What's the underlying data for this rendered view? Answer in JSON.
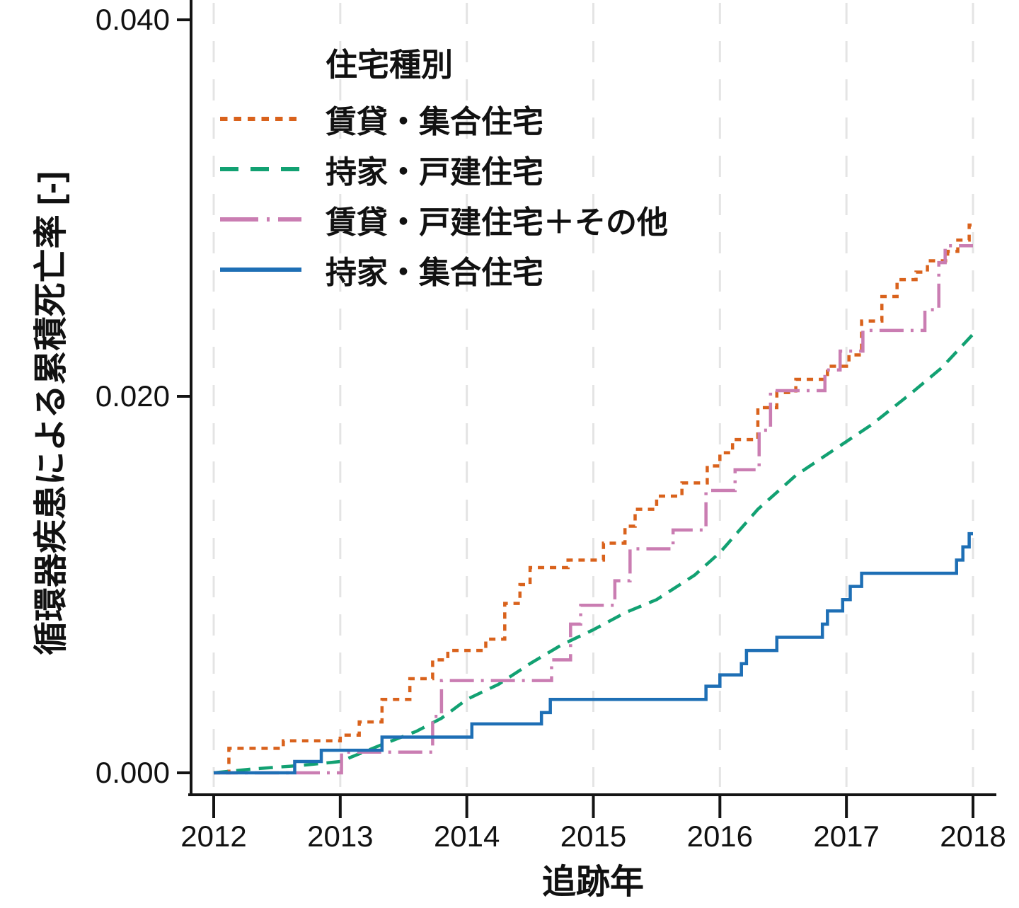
{
  "figure": {
    "background": "#ffffff",
    "axis_color": "#141414",
    "text_color": "#111111",
    "grid_color": "#e4e4e4"
  },
  "chart_data": {
    "type": "line",
    "subtype": "cumulative-incidence-step-curves",
    "title": "",
    "xlabel": "追跡年",
    "ylabel": "循環器疾患による累積死亡率 [-]",
    "xlim": [
      2012,
      2018
    ],
    "ylim": [
      0.0,
      0.04
    ],
    "x_ticks": [
      "2012",
      "2013",
      "2014",
      "2015",
      "2016",
      "2017",
      "2018"
    ],
    "y_ticks": [
      {
        "value": 0.0,
        "label": "0.000"
      },
      {
        "value": 0.02,
        "label": "0.020"
      },
      {
        "value": 0.04,
        "label": "0.040"
      }
    ],
    "grid": "vertical dashed gridlines at each year, no horizontal gridlines",
    "legend": {
      "title": "住宅種別",
      "position": "inside top-left"
    },
    "series": [
      {
        "name": "賃貸・集合住宅",
        "color": "#d9621c",
        "line_style": "dotted",
        "interpolation": "step",
        "points": [
          [
            2012.0,
            0.0
          ],
          [
            2012.12,
            0.0013
          ],
          [
            2012.55,
            0.0017
          ],
          [
            2013.0,
            0.002
          ],
          [
            2013.15,
            0.0027
          ],
          [
            2013.33,
            0.0039
          ],
          [
            2013.55,
            0.005
          ],
          [
            2013.73,
            0.006
          ],
          [
            2013.85,
            0.0065
          ],
          [
            2014.15,
            0.0071
          ],
          [
            2014.3,
            0.009
          ],
          [
            2014.42,
            0.01
          ],
          [
            2014.5,
            0.0109
          ],
          [
            2014.8,
            0.0113
          ],
          [
            2015.08,
            0.0122
          ],
          [
            2015.25,
            0.0131
          ],
          [
            2015.33,
            0.014
          ],
          [
            2015.5,
            0.0147
          ],
          [
            2015.7,
            0.0154
          ],
          [
            2015.9,
            0.0163
          ],
          [
            2016.0,
            0.017
          ],
          [
            2016.1,
            0.0177
          ],
          [
            2016.3,
            0.0194
          ],
          [
            2016.45,
            0.0202
          ],
          [
            2016.6,
            0.0209
          ],
          [
            2016.85,
            0.0216
          ],
          [
            2017.02,
            0.0222
          ],
          [
            2017.12,
            0.024
          ],
          [
            2017.28,
            0.0253
          ],
          [
            2017.4,
            0.0262
          ],
          [
            2017.55,
            0.0266
          ],
          [
            2017.64,
            0.0272
          ],
          [
            2017.8,
            0.0277
          ],
          [
            2017.88,
            0.0283
          ],
          [
            2017.97,
            0.0291
          ],
          [
            2018.0,
            0.0291
          ]
        ]
      },
      {
        "name": "持家・戸建住宅",
        "color": "#12a172",
        "line_style": "dashed",
        "interpolation": "linear",
        "points": [
          [
            2012.0,
            0.0
          ],
          [
            2012.3,
            0.0002
          ],
          [
            2012.7,
            0.0004
          ],
          [
            2013.0,
            0.0006
          ],
          [
            2013.33,
            0.0015
          ],
          [
            2013.6,
            0.0022
          ],
          [
            2013.8,
            0.0029
          ],
          [
            2014.0,
            0.0039
          ],
          [
            2014.25,
            0.0047
          ],
          [
            2014.5,
            0.0058
          ],
          [
            2014.75,
            0.0068
          ],
          [
            2015.0,
            0.0076
          ],
          [
            2015.25,
            0.0085
          ],
          [
            2015.5,
            0.0092
          ],
          [
            2015.8,
            0.0105
          ],
          [
            2016.0,
            0.0117
          ],
          [
            2016.3,
            0.014
          ],
          [
            2016.6,
            0.0158
          ],
          [
            2017.0,
            0.0176
          ],
          [
            2017.2,
            0.0185
          ],
          [
            2017.5,
            0.0201
          ],
          [
            2017.75,
            0.0215
          ],
          [
            2018.0,
            0.0233
          ]
        ]
      },
      {
        "name": "賃貸・戸建住宅＋その他",
        "color": "#ca7db2",
        "line_style": "dashdot",
        "interpolation": "step",
        "points": [
          [
            2012.0,
            0.0
          ],
          [
            2013.01,
            0.0011
          ],
          [
            2013.73,
            0.003
          ],
          [
            2013.8,
            0.0049
          ],
          [
            2014.67,
            0.006
          ],
          [
            2014.82,
            0.0079
          ],
          [
            2014.9,
            0.0089
          ],
          [
            2015.17,
            0.0102
          ],
          [
            2015.29,
            0.0119
          ],
          [
            2015.63,
            0.0129
          ],
          [
            2015.89,
            0.015
          ],
          [
            2016.12,
            0.0161
          ],
          [
            2016.31,
            0.0182
          ],
          [
            2016.4,
            0.0203
          ],
          [
            2016.83,
            0.0214
          ],
          [
            2016.95,
            0.0224
          ],
          [
            2017.13,
            0.0235
          ],
          [
            2017.62,
            0.0246
          ],
          [
            2017.73,
            0.0271
          ],
          [
            2017.78,
            0.028
          ],
          [
            2018.0,
            0.028
          ]
        ]
      },
      {
        "name": "持家・集合住宅",
        "color": "#1e6fb5",
        "line_style": "solid",
        "interpolation": "step",
        "points": [
          [
            2012.0,
            0.0
          ],
          [
            2012.64,
            0.0006
          ],
          [
            2012.85,
            0.0012
          ],
          [
            2013.33,
            0.0019
          ],
          [
            2014.04,
            0.0026
          ],
          [
            2014.59,
            0.0032
          ],
          [
            2014.66,
            0.0039
          ],
          [
            2015.89,
            0.0046
          ],
          [
            2016.0,
            0.0052
          ],
          [
            2016.17,
            0.0058
          ],
          [
            2016.21,
            0.0065
          ],
          [
            2016.45,
            0.0072
          ],
          [
            2016.81,
            0.0079
          ],
          [
            2016.85,
            0.0086
          ],
          [
            2016.97,
            0.0092
          ],
          [
            2017.03,
            0.0099
          ],
          [
            2017.12,
            0.0106
          ],
          [
            2017.87,
            0.0113
          ],
          [
            2017.92,
            0.012
          ],
          [
            2017.97,
            0.0127
          ],
          [
            2018.0,
            0.0127
          ]
        ]
      }
    ]
  }
}
